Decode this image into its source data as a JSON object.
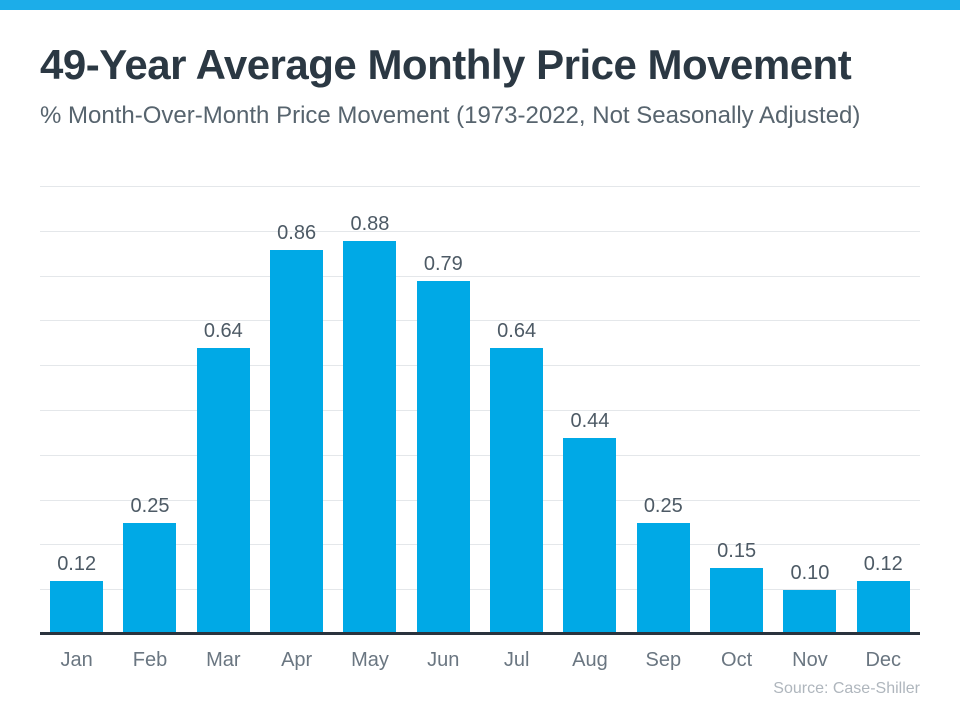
{
  "header": {
    "title": "49-Year Average Monthly Price Movement",
    "subtitle": "% Month-Over-Month Price Movement (1973-2022, Not Seasonally Adjusted)"
  },
  "footer": {
    "source": "Source: Case-Shiller"
  },
  "colors": {
    "top_bar": "#1CADE9",
    "bar_fill": "#00A9E6",
    "title_text": "#2B3843",
    "subtitle_text": "#57646E",
    "value_label_text": "#4D5A65",
    "month_label_text": "#6A7681",
    "gridline": "#E4E7EA",
    "axis_line": "#2A333D",
    "source_text": "#AFB6BD"
  },
  "chart_data": {
    "type": "bar",
    "categories": [
      "Jan",
      "Feb",
      "Mar",
      "Apr",
      "May",
      "Jun",
      "Jul",
      "Aug",
      "Sep",
      "Oct",
      "Nov",
      "Dec"
    ],
    "values": [
      0.12,
      0.25,
      0.64,
      0.86,
      0.88,
      0.79,
      0.64,
      0.44,
      0.25,
      0.15,
      0.1,
      0.12
    ],
    "value_labels": [
      "0.12",
      "0.25",
      "0.64",
      "0.86",
      "0.88",
      "0.79",
      "0.64",
      "0.44",
      "0.25",
      "0.15",
      "0.10",
      "0.12"
    ],
    "title": "49-Year Average Monthly Price Movement",
    "subtitle": "% Month-Over-Month Price Movement (1973-2022, Not Seasonally Adjusted)",
    "xlabel": "",
    "ylabel": "",
    "ylim": [
      0,
      1.0
    ],
    "grid_step": 0.1,
    "grid": true,
    "legend": false,
    "bar_color": "#00A9E6",
    "source": "Source: Case-Shiller"
  }
}
